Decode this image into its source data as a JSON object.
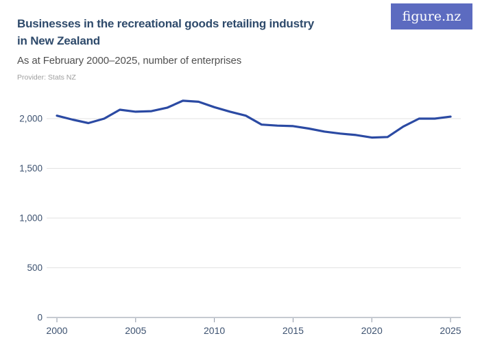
{
  "header": {
    "title": "Businesses in the recreational goods retailing industry in New Zealand",
    "title_line1": "Businesses in the recreational goods retailing industry",
    "title_line2": "in New Zealand",
    "subtitle": "As at February 2000–2025, number of enterprises",
    "provider": "Provider: Stats NZ",
    "logo_text": "figure.nz"
  },
  "colors": {
    "brand_purple": "#5c6bc0",
    "line_blue": "#2b4aa3",
    "title_navy": "#2e4a6b",
    "subtitle_gray": "#4f4f4f",
    "provider_gray": "#9e9e9e",
    "axis_label": "#3d5270",
    "gridline": "#e2e2e2",
    "axis_line": "#8b94a3"
  },
  "chart_data": {
    "type": "line",
    "title": "Businesses in the recreational goods retailing industry in New Zealand",
    "subtitle": "As at February 2000–2025, number of enterprises",
    "provider": "Stats NZ",
    "xlabel": "",
    "ylabel": "",
    "legend": "none",
    "grid": "horizontal",
    "xlim": [
      2000,
      2025
    ],
    "ylim": [
      0,
      2230
    ],
    "x_ticks": [
      2000,
      2005,
      2010,
      2015,
      2020,
      2025
    ],
    "x_tick_labels": [
      "2000",
      "2005",
      "2010",
      "2015",
      "2020",
      "2025"
    ],
    "y_ticks": [
      0,
      500,
      1000,
      1500,
      2000
    ],
    "y_tick_labels": [
      "0",
      "500",
      "1,000",
      "1,500",
      "2,000"
    ],
    "x": [
      2000,
      2001,
      2002,
      2003,
      2004,
      2005,
      2006,
      2007,
      2008,
      2009,
      2010,
      2011,
      2012,
      2013,
      2014,
      2015,
      2016,
      2017,
      2018,
      2019,
      2020,
      2021,
      2022,
      2023,
      2024,
      2025
    ],
    "values": [
      2030,
      1990,
      1955,
      2000,
      2090,
      2070,
      2075,
      2110,
      2180,
      2170,
      2115,
      2070,
      2030,
      1940,
      1930,
      1925,
      1900,
      1870,
      1850,
      1835,
      1810,
      1815,
      1920,
      2000,
      2000,
      2020
    ],
    "series_name": "Number of enterprises",
    "series_color": "#2b4aa3"
  }
}
